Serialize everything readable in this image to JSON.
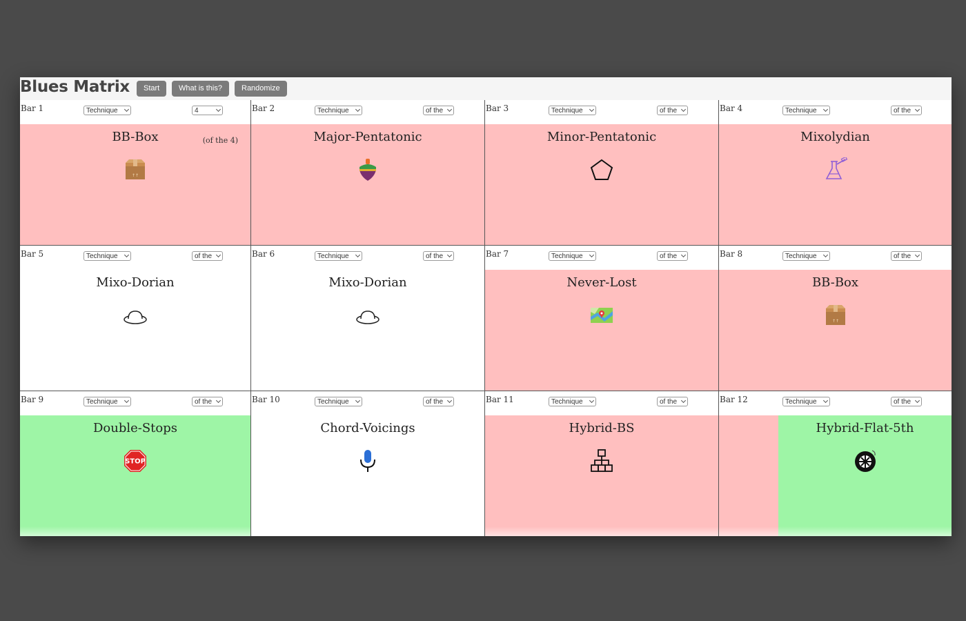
{
  "app": {
    "title": "Blues Matrix",
    "buttons": {
      "start": "Start",
      "what": "What is this?",
      "randomize": "Randomize"
    }
  },
  "colors": {
    "red": "#ffbfbf",
    "green": "#9ef5a6",
    "white": "#ffffff",
    "button": "#7b7b7b"
  },
  "cells": [
    {
      "bar": "Bar 1",
      "technique": "Technique",
      "of": "4",
      "name": "BB-Box",
      "note": "(of the 4)",
      "icon": "box-icon",
      "color": "red"
    },
    {
      "bar": "Bar 2",
      "technique": "Technique",
      "of": "of the",
      "name": "Major-Pentatonic",
      "icon": "spinning-top-icon",
      "color": "red"
    },
    {
      "bar": "Bar 3",
      "technique": "Technique",
      "of": "of the",
      "name": "Minor-Pentatonic",
      "icon": "pentagon-icon",
      "color": "red"
    },
    {
      "bar": "Bar 4",
      "technique": "Technique",
      "of": "of the",
      "name": "Mixolydian",
      "icon": "flask-icon",
      "color": "red"
    },
    {
      "bar": "Bar 5",
      "technique": "Technique",
      "of": "of the",
      "name": "Mixo-Dorian",
      "icon": "hat-icon",
      "color": "white"
    },
    {
      "bar": "Bar 6",
      "technique": "Technique",
      "of": "of the",
      "name": "Mixo-Dorian",
      "icon": "hat-icon",
      "color": "white"
    },
    {
      "bar": "Bar 7",
      "technique": "Technique",
      "of": "of the",
      "name": "Never-Lost",
      "icon": "map-icon",
      "color": "red"
    },
    {
      "bar": "Bar 8",
      "technique": "Technique",
      "of": "of the",
      "name": "BB-Box",
      "icon": "box-icon",
      "color": "red"
    },
    {
      "bar": "Bar 9",
      "technique": "Technique",
      "of": "of the",
      "name": "Double-Stops",
      "icon": "stop-sign-icon",
      "color": "green"
    },
    {
      "bar": "Bar 10",
      "technique": "Technique",
      "of": "of the",
      "name": "Chord-Voicings",
      "icon": "microphone-icon",
      "color": "white"
    },
    {
      "bar": "Bar 11",
      "technique": "Technique",
      "of": "of the",
      "name": "Hybrid-BS",
      "icon": "hierarchy-icon",
      "color": "red"
    },
    {
      "bar": "Bar 12",
      "technique": "Technique",
      "of": "of the",
      "name": "Hybrid-Flat-5th",
      "icon": "tire-icon",
      "color": "split"
    }
  ],
  "stop_label": "STOP"
}
